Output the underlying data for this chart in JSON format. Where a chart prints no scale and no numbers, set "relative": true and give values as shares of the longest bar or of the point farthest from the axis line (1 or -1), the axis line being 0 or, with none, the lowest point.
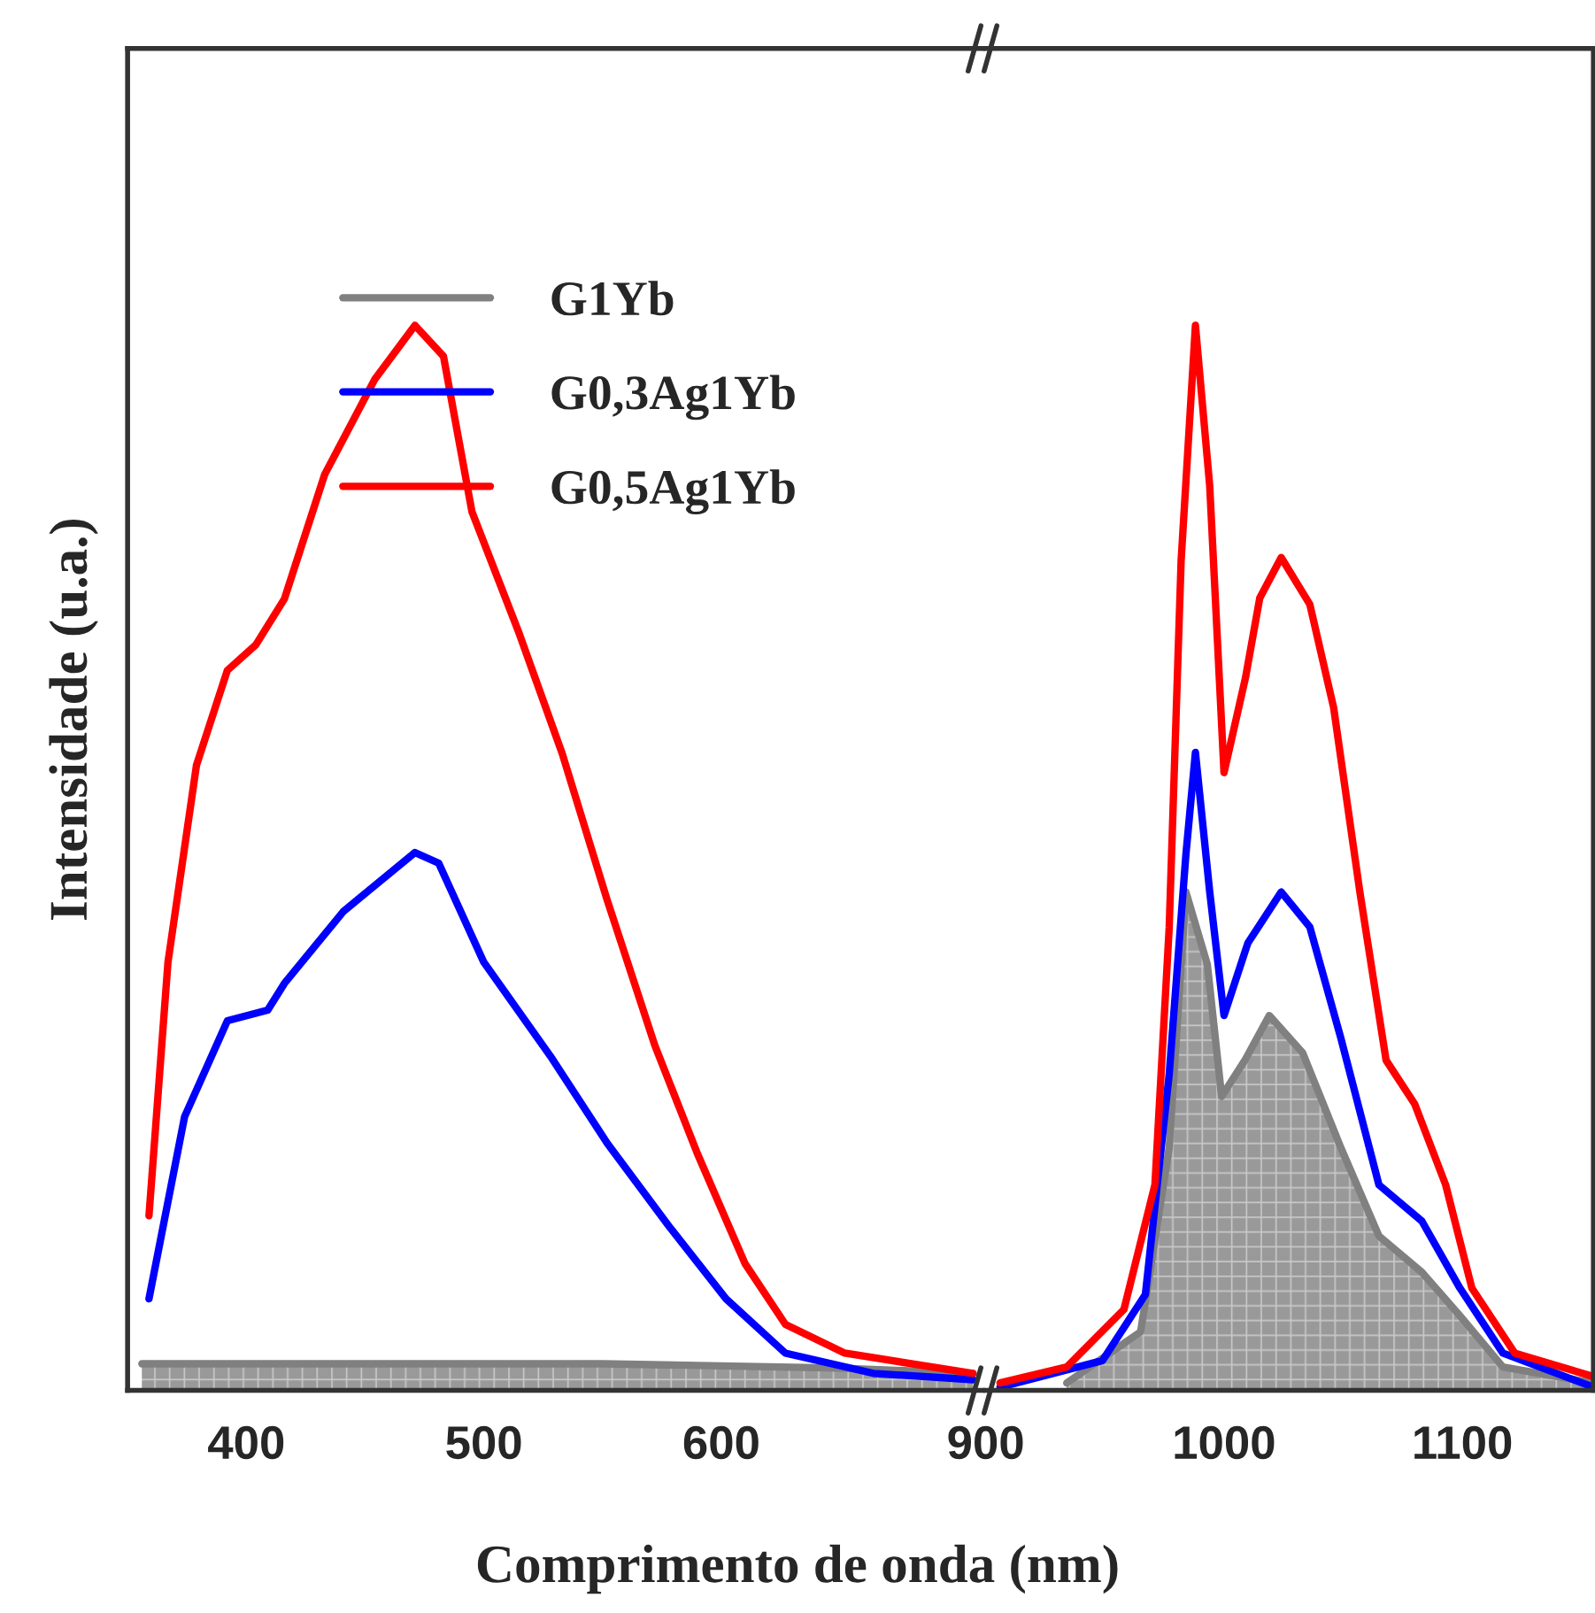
{
  "chart_data": [
    {
      "type": "line",
      "relative": true,
      "xlabel": "Comprimento de onda (nm)",
      "ylabel": "Intensidade (u.a.)",
      "xlim": [
        350,
        710
      ],
      "xticks": [
        400,
        500,
        600
      ],
      "legend": "top left",
      "grid": false,
      "series": [
        {
          "name": "G1Yb",
          "type": "area",
          "color": "#808080",
          "x": [
            356,
            450,
            550,
            650,
            706
          ],
          "values": [
            0.025,
            0.025,
            0.025,
            0.021,
            0.016
          ]
        },
        {
          "name": "G0,3Ag1Yb",
          "color": "#0000ff",
          "x": [
            359,
            374,
            392,
            409,
            416,
            441,
            471,
            481,
            500,
            528,
            552,
            578,
            602,
            627,
            664,
            706
          ],
          "values": [
            0.086,
            0.257,
            0.347,
            0.357,
            0.382,
            0.45,
            0.505,
            0.495,
            0.402,
            0.314,
            0.232,
            0.154,
            0.086,
            0.035,
            0.016,
            0.01
          ]
        },
        {
          "name": "G0,5Ag1Yb",
          "color": "#ff0000",
          "x": [
            359,
            367,
            379,
            392,
            404,
            416,
            433,
            454,
            471,
            483,
            495,
            515,
            533,
            552,
            572,
            590,
            610,
            627,
            652,
            706
          ],
          "values": [
            0.164,
            0.402,
            0.587,
            0.676,
            0.7,
            0.743,
            0.86,
            0.949,
            1.0,
            0.971,
            0.825,
            0.71,
            0.598,
            0.46,
            0.324,
            0.222,
            0.119,
            0.062,
            0.035,
            0.016
          ]
        }
      ]
    },
    {
      "type": "line",
      "relative": true,
      "xlim": [
        900,
        1155
      ],
      "xticks": [
        900,
        1000,
        1100
      ],
      "grid": false,
      "series": [
        {
          "type": "area",
          "color": "#808080",
          "x": [
            934,
            965,
            977,
            984,
            993,
            999,
            1009,
            1019,
            1033,
            1049,
            1065,
            1083,
            1099,
            1117,
            1155
          ],
          "values": [
            0.007,
            0.055,
            0.228,
            0.468,
            0.4,
            0.276,
            0.311,
            0.352,
            0.317,
            0.228,
            0.145,
            0.111,
            0.07,
            0.022,
            0.007
          ]
        },
        {
          "color": "#0000ff",
          "x": [
            906,
            949,
            967,
            977,
            984,
            988,
            994,
            1000,
            1010,
            1024,
            1036,
            1049,
            1065,
            1083,
            1099,
            1117,
            1155
          ],
          "values": [
            0.003,
            0.028,
            0.09,
            0.297,
            0.503,
            0.599,
            0.468,
            0.352,
            0.42,
            0.468,
            0.435,
            0.331,
            0.193,
            0.159,
            0.096,
            0.035,
            0.003
          ]
        },
        {
          "color": "#ff0000",
          "x": [
            906,
            934,
            958,
            971,
            977,
            982,
            988,
            994,
            1000,
            1009,
            1015,
            1024,
            1036,
            1046,
            1057,
            1068,
            1080,
            1093,
            1104,
            1122,
            1155
          ],
          "values": [
            0.007,
            0.022,
            0.076,
            0.193,
            0.435,
            0.779,
            1.0,
            0.849,
            0.58,
            0.669,
            0.744,
            0.782,
            0.738,
            0.641,
            0.468,
            0.31,
            0.269,
            0.193,
            0.096,
            0.035,
            0.013
          ]
        }
      ]
    }
  ]
}
